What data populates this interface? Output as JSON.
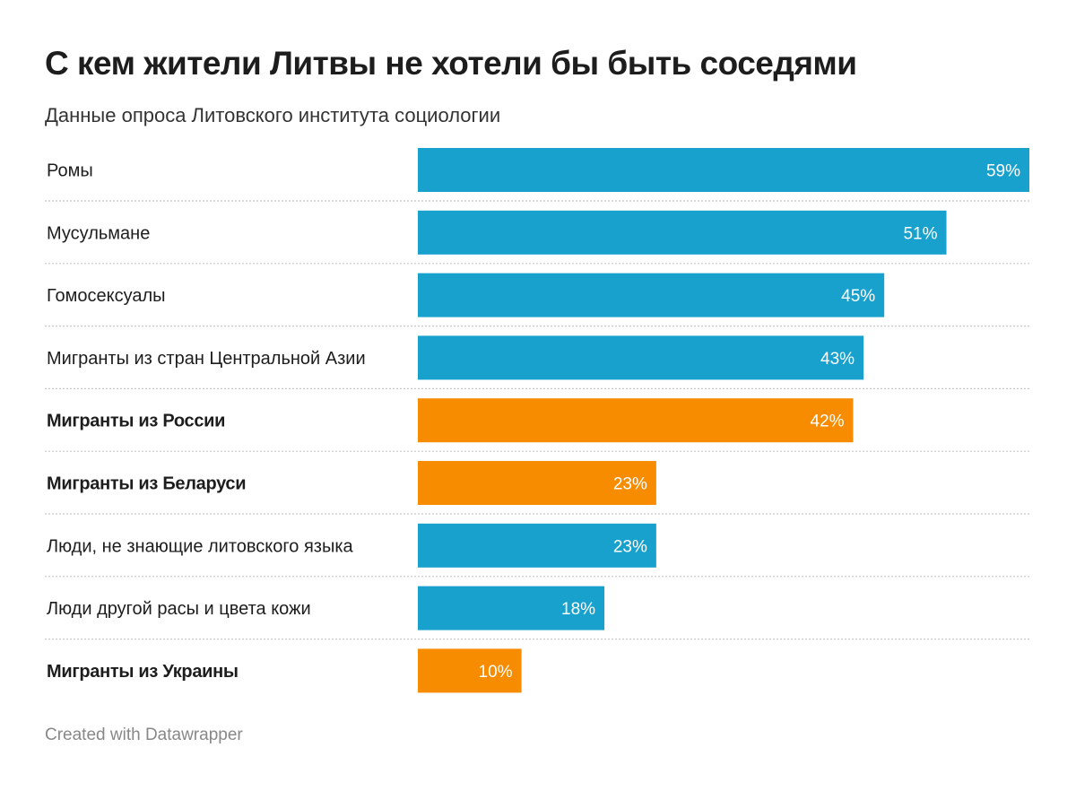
{
  "chart_data": {
    "type": "bar",
    "orientation": "horizontal",
    "title": "С кем жители Литвы не хотели бы быть соседями",
    "subtitle": "Данные опроса Литовского института социологии",
    "categories": [
      "Ромы",
      "Мусульмане",
      "Гомосексуалы",
      "Мигранты из стран Центральной Азии",
      "Мигранты из России",
      "Мигранты из Беларуси",
      "Люди, не знающие литовского языка",
      "Люди другой расы и цвета кожи",
      "Мигранты из Украины"
    ],
    "values": [
      59,
      51,
      45,
      43,
      42,
      23,
      23,
      18,
      10
    ],
    "value_labels": [
      "59%",
      "51%",
      "45%",
      "43%",
      "42%",
      "23%",
      "23%",
      "18%",
      "10%"
    ],
    "highlighted": [
      false,
      false,
      false,
      false,
      true,
      true,
      false,
      false,
      true
    ],
    "unit": "%",
    "xlim": [
      0,
      59
    ],
    "colors": {
      "default": "#19A1CD",
      "highlight": "#F78C00",
      "label_text": "#ffffff"
    },
    "grid": false,
    "legend": "none"
  },
  "footer": "Created with Datawrapper"
}
